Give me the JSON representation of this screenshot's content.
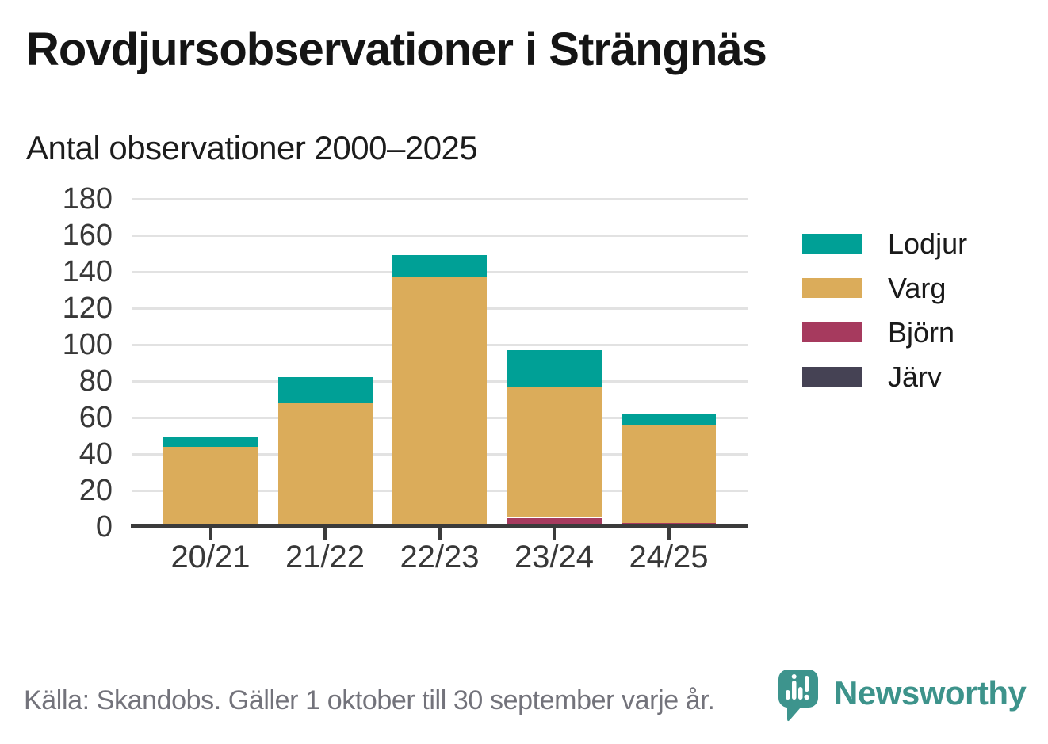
{
  "header": {
    "title": "Rovdjursobservationer i Strängnäs",
    "subtitle": "Antal observationer 2000–2025"
  },
  "footer": {
    "source": "Källa: Skandobs. Gäller 1 oktober till 30 september varje år.",
    "brand": "Newsworthy"
  },
  "colors": {
    "lodjur_teal": "#00A096",
    "varg_gold": "#DBAC5A",
    "bjorn_maroon": "#A63A5E",
    "jarv_dark": "#454254",
    "axis": "#3b3b3b",
    "grid": "#e2e2e2",
    "tick_text": "#383838",
    "source_text": "#73737b",
    "brand_teal": "#3D938B"
  },
  "chart_data": {
    "type": "bar",
    "stacked": true,
    "title": "Rovdjursobservationer i Strängnäs",
    "subtitle": "Antal observationer 2000–2025",
    "categories": [
      "20/21",
      "21/22",
      "22/23",
      "23/24",
      "24/25"
    ],
    "series": [
      {
        "name": "Lodjur",
        "color": "#00A096",
        "values": [
          5,
          14,
          12,
          20,
          6
        ]
      },
      {
        "name": "Varg",
        "color": "#DBAC5A",
        "values": [
          44,
          68,
          137,
          72,
          54
        ]
      },
      {
        "name": "Björn",
        "color": "#A63A5E",
        "values": [
          0,
          0,
          0,
          5,
          2
        ]
      },
      {
        "name": "Järv",
        "color": "#454254",
        "values": [
          0,
          0,
          0,
          0,
          0
        ]
      }
    ],
    "stack_order_bottom_to_top": [
      "Järv",
      "Björn",
      "Varg",
      "Lodjur"
    ],
    "stack_totals": [
      49,
      82,
      149,
      97,
      62
    ],
    "xlabel": "",
    "ylabel": "",
    "ylim": [
      0,
      180
    ],
    "yticks": [
      0,
      20,
      40,
      60,
      80,
      100,
      120,
      140,
      160,
      180
    ],
    "grid": true,
    "legend_position": "right"
  }
}
